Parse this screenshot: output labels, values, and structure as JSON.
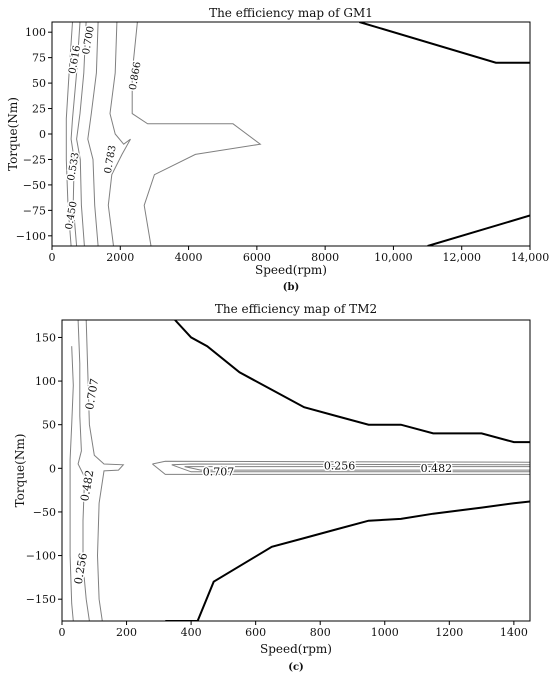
{
  "chart_data": [
    {
      "type": "contour",
      "title": "The efficiency map of GM1",
      "xlabel": "Speed(rpm)",
      "ylabel": "Torque(Nm)",
      "panel_label": "(b)",
      "xlim": [
        0,
        14000
      ],
      "ylim": [
        -110,
        110
      ],
      "xticks": [
        0,
        2000,
        4000,
        6000,
        8000,
        10000,
        12000,
        14000
      ],
      "xtick_labels": [
        "0",
        "2000",
        "4000",
        "6000",
        "8000",
        "10,000",
        "12,000",
        "14,000"
      ],
      "yticks": [
        -100,
        -75,
        -50,
        -25,
        0,
        25,
        50,
        75,
        100
      ],
      "ytick_labels": [
        "−100",
        "−75",
        "−50",
        "−25",
        "0",
        "25",
        "50",
        "75",
        "100"
      ],
      "limit_lines": [
        {
          "points": [
            [
              9000,
              110
            ],
            [
              13000,
              70
            ],
            [
              14000,
              70
            ]
          ]
        },
        {
          "points": [
            [
              11000,
              -110
            ],
            [
              14000,
              -80
            ]
          ]
        }
      ],
      "contours": [
        {
          "level": "0.450",
          "points": [
            [
              600,
              110
            ],
            [
              500,
              60
            ],
            [
              420,
              15
            ],
            [
              420,
              -25
            ],
            [
              470,
              -70
            ],
            [
              560,
              -110
            ]
          ]
        },
        {
          "level": "0.533",
          "points": [
            [
              820,
              110
            ],
            [
              720,
              60
            ],
            [
              600,
              15
            ],
            [
              560,
              -5
            ],
            [
              650,
              -25
            ],
            [
              620,
              -70
            ],
            [
              720,
              -110
            ]
          ]
        },
        {
          "level": "0.616",
          "points": [
            [
              1000,
              110
            ],
            [
              930,
              60
            ],
            [
              820,
              20
            ],
            [
              720,
              -5
            ],
            [
              830,
              -25
            ],
            [
              860,
              -70
            ],
            [
              950,
              -110
            ]
          ]
        },
        {
          "level": "0.700",
          "points": [
            [
              1350,
              110
            ],
            [
              1300,
              60
            ],
            [
              1150,
              20
            ],
            [
              1050,
              -5
            ],
            [
              1200,
              -25
            ],
            [
              1250,
              -70
            ],
            [
              1350,
              -110
            ]
          ]
        },
        {
          "level": "0.783",
          "points": [
            [
              1900,
              110
            ],
            [
              1850,
              60
            ],
            [
              1700,
              20
            ],
            [
              1850,
              0
            ],
            [
              2100,
              -10
            ],
            [
              2300,
              -5
            ],
            [
              2050,
              -20
            ],
            [
              1750,
              -40
            ],
            [
              1650,
              -70
            ],
            [
              1800,
              -110
            ]
          ]
        },
        {
          "level": "0.866",
          "points": [
            [
              2500,
              110
            ],
            [
              2350,
              60
            ],
            [
              2350,
              20
            ],
            [
              2800,
              10
            ],
            [
              5300,
              10
            ],
            [
              6100,
              -10
            ],
            [
              4200,
              -20
            ],
            [
              3000,
              -40
            ],
            [
              2700,
              -70
            ],
            [
              2900,
              -110
            ]
          ]
        }
      ],
      "contour_labels": [
        {
          "text": "0.616",
          "x": 680,
          "y": 73
        },
        {
          "text": "0.700",
          "x": 1080,
          "y": 92
        },
        {
          "text": "0.866",
          "x": 2450,
          "y": 57
        },
        {
          "text": "0.533",
          "x": 640,
          "y": -32
        },
        {
          "text": "0.783",
          "x": 1720,
          "y": -25
        },
        {
          "text": "0.450",
          "x": 580,
          "y": -80
        }
      ]
    },
    {
      "type": "contour",
      "title": "The efficiency map of TM2",
      "xlabel": "Speed(rpm)",
      "ylabel": "Torque(Nm)",
      "panel_label": "(c)",
      "xlim": [
        0,
        1450
      ],
      "ylim": [
        -175,
        170
      ],
      "xticks": [
        0,
        200,
        400,
        600,
        800,
        1000,
        1200,
        1400
      ],
      "xtick_labels": [
        "0",
        "200",
        "400",
        "600",
        "800",
        "1000",
        "1200",
        "1400"
      ],
      "yticks": [
        -150,
        -100,
        -50,
        0,
        50,
        100,
        150
      ],
      "ytick_labels": [
        "−150",
        "−100",
        "−50",
        "0",
        "50",
        "100",
        "150"
      ],
      "limit_lines": [
        {
          "points": [
            [
              350,
              170
            ],
            [
              400,
              150
            ],
            [
              450,
              140
            ],
            [
              550,
              110
            ],
            [
              650,
              90
            ],
            [
              750,
              70
            ],
            [
              850,
              60
            ],
            [
              950,
              50
            ],
            [
              1050,
              50
            ],
            [
              1150,
              40
            ],
            [
              1300,
              40
            ],
            [
              1400,
              30
            ],
            [
              1450,
              30
            ]
          ]
        },
        {
          "points": [
            [
              320,
              -175
            ],
            [
              420,
              -175
            ],
            [
              470,
              -130
            ],
            [
              650,
              -90
            ],
            [
              750,
              -80
            ],
            [
              850,
              -70
            ],
            [
              950,
              -60
            ],
            [
              1050,
              -58
            ],
            [
              1150,
              -52
            ],
            [
              1300,
              -45
            ],
            [
              1400,
              -40
            ],
            [
              1450,
              -38
            ]
          ]
        }
      ],
      "contours": [
        {
          "level": "0.256",
          "points": [
            [
              30,
              140
            ],
            [
              35,
              95
            ],
            [
              30,
              50
            ],
            [
              25,
              10
            ],
            [
              25,
              -40
            ],
            [
              25,
              -100
            ],
            [
              30,
              -155
            ],
            [
              35,
              -175
            ]
          ]
        },
        {
          "level": "0.482",
          "points": [
            [
              50,
              170
            ],
            [
              55,
              120
            ],
            [
              55,
              60
            ],
            [
              60,
              20
            ],
            [
              50,
              5
            ],
            [
              70,
              -10
            ],
            [
              65,
              -60
            ],
            [
              65,
              -110
            ],
            [
              75,
              -150
            ],
            [
              85,
              -175
            ]
          ]
        },
        {
          "level": "0.707",
          "points": [
            [
              75,
              170
            ],
            [
              80,
              110
            ],
            [
              85,
              50
            ],
            [
              100,
              15
            ],
            [
              130,
              5
            ],
            [
              190,
              4
            ],
            [
              175,
              -2
            ],
            [
              130,
              -3
            ],
            [
              115,
              -40
            ],
            [
              110,
              -100
            ],
            [
              115,
              -150
            ],
            [
              125,
              -175
            ]
          ]
        },
        {
          "level": "0.707",
          "points": [
            [
              280,
              5
            ],
            [
              320,
              8
            ],
            [
              1450,
              7
            ],
            [
              1450,
              -7
            ],
            [
              320,
              -7
            ],
            [
              280,
              5
            ]
          ]
        },
        {
          "level": "0.482",
          "points": [
            [
              340,
              4
            ],
            [
              400,
              5
            ],
            [
              1450,
              4
            ],
            [
              1450,
              -4
            ],
            [
              400,
              -4
            ],
            [
              340,
              4
            ]
          ]
        },
        {
          "level": "0.256",
          "points": [
            [
              380,
              2
            ],
            [
              430,
              2
            ],
            [
              1450,
              2
            ],
            [
              1450,
              -2
            ],
            [
              430,
              -2
            ],
            [
              380,
              2
            ]
          ]
        }
      ],
      "contour_labels": [
        {
          "text": "0.707",
          "x": 95,
          "y": 85
        },
        {
          "text": "0.482",
          "x": 80,
          "y": -20
        },
        {
          "text": "0.256",
          "x": 60,
          "y": -115
        },
        {
          "text": "0.707",
          "x": 485,
          "y": -5
        },
        {
          "text": "0.256",
          "x": 860,
          "y": 2
        },
        {
          "text": "0.482",
          "x": 1160,
          "y": -1
        }
      ]
    }
  ]
}
